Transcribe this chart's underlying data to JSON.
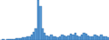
{
  "values": [
    1,
    2,
    1,
    2,
    3,
    2,
    3,
    4,
    4,
    5,
    6,
    7,
    8,
    10,
    13,
    20,
    28,
    100,
    85,
    30,
    18,
    12,
    9,
    14,
    10,
    8,
    6,
    10,
    14,
    12,
    9,
    11,
    16,
    14,
    18,
    12,
    10,
    14,
    18,
    16,
    12,
    10,
    8,
    14,
    12,
    10,
    13,
    10,
    8,
    6
  ],
  "bar_color": "#5b9bd5",
  "edge_color": "#2060a0",
  "background_color": "#ffffff",
  "ylim_min": 0,
  "ylim_max": 100
}
